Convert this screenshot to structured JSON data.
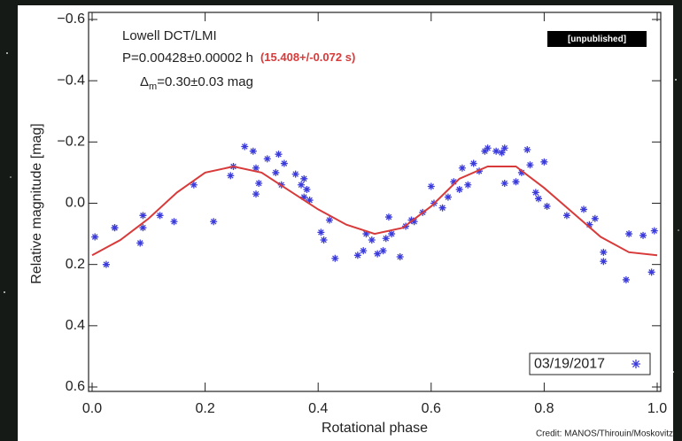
{
  "chart_data": {
    "type": "scatter",
    "x_label": "Rotational phase",
    "y_label": "Relative magnitude [mag]",
    "annotations": {
      "instrument": "Lowell DCT/LMI",
      "period": "P=0.00428±0.00002 h",
      "period_seconds": "(15.408+/-0.072 s)",
      "amplitude_symbol": "Δ",
      "amplitude_subscript": "m",
      "amplitude_value": "=0.30±0.03 mag",
      "status": "[unpublished]",
      "credit": "Credit: MANOS/Thirouin/Moskovitz"
    },
    "xlim": [
      0,
      1
    ],
    "xticks": [
      {
        "value": 0,
        "label": "0.0"
      },
      0.2,
      0.4,
      0.6,
      0.8,
      {
        "value": 1,
        "label": "1.0"
      }
    ],
    "ylim": [
      -0.6,
      0.6
    ],
    "y_inverted": true,
    "yticks": [
      {
        "value": -0.6,
        "label": "−0.6"
      },
      {
        "value": -0.4,
        "label": "−0.4"
      },
      {
        "value": -0.2,
        "label": "−0.2"
      },
      {
        "value": 0,
        "label": "0.0"
      },
      0.2,
      0.4,
      0.6
    ],
    "legend_position": "lower right",
    "series": [
      {
        "name": "03/19/2017",
        "color": "#3b3bdc",
        "marker": "asterisk",
        "x": [
          0.005,
          0.025,
          0.04,
          0.04,
          0.085,
          0.09,
          0.09,
          0.12,
          0.145,
          0.18,
          0.215,
          0.245,
          0.25,
          0.27,
          0.285,
          0.29,
          0.295,
          0.29,
          0.31,
          0.325,
          0.33,
          0.335,
          0.34,
          0.36,
          0.37,
          0.375,
          0.38,
          0.375,
          0.385,
          0.405,
          0.41,
          0.42,
          0.43,
          0.47,
          0.48,
          0.485,
          0.495,
          0.505,
          0.515,
          0.52,
          0.525,
          0.53,
          0.545,
          0.555,
          0.565,
          0.57,
          0.585,
          0.6,
          0.605,
          0.62,
          0.63,
          0.64,
          0.65,
          0.655,
          0.665,
          0.675,
          0.685,
          0.695,
          0.7,
          0.715,
          0.725,
          0.73,
          0.73,
          0.75,
          0.76,
          0.77,
          0.775,
          0.785,
          0.79,
          0.8,
          0.805,
          0.84,
          0.87,
          0.88,
          0.89,
          0.905,
          0.905,
          0.945,
          0.95,
          0.975,
          0.99,
          0.995
        ],
        "values": [
          0.11,
          0.2,
          0.08,
          0.08,
          0.13,
          0.08,
          0.04,
          0.04,
          0.06,
          -0.06,
          0.06,
          -0.09,
          -0.12,
          -0.185,
          -0.17,
          -0.115,
          -0.065,
          -0.03,
          -0.145,
          -0.1,
          -0.16,
          -0.06,
          -0.13,
          -0.095,
          -0.06,
          -0.08,
          -0.045,
          -0.02,
          -0.01,
          0.095,
          0.12,
          0.055,
          0.18,
          0.17,
          0.155,
          0.1,
          0.12,
          0.165,
          0.155,
          0.115,
          0.045,
          0.1,
          0.175,
          0.075,
          0.055,
          0.06,
          0.03,
          -0.055,
          0,
          0.015,
          -0.02,
          -0.07,
          -0.045,
          -0.115,
          -0.06,
          -0.13,
          -0.105,
          -0.17,
          -0.18,
          -0.17,
          -0.165,
          -0.18,
          -0.065,
          -0.07,
          -0.1,
          -0.175,
          -0.125,
          -0.035,
          -0.015,
          -0.135,
          0.01,
          0.04,
          0.02,
          0.07,
          0.05,
          0.16,
          0.19,
          0.25,
          0.1,
          0.105,
          0.225,
          0.09
        ]
      },
      {
        "type": "line",
        "color": "#d83a3a",
        "x": [
          0,
          0.05,
          0.1,
          0.15,
          0.2,
          0.25,
          0.3,
          0.35,
          0.4,
          0.45,
          0.5,
          0.55,
          0.6,
          0.65,
          0.7,
          0.75,
          0.8,
          0.85,
          0.9,
          0.95,
          1
        ],
        "values": [
          0.17,
          0.12,
          0.05,
          -0.035,
          -0.1,
          -0.12,
          -0.1,
          -0.04,
          0.02,
          0.07,
          0.1,
          0.08,
          0.01,
          -0.08,
          -0.12,
          -0.12,
          -0.05,
          0.03,
          0.11,
          0.16,
          0.17
        ]
      }
    ]
  }
}
